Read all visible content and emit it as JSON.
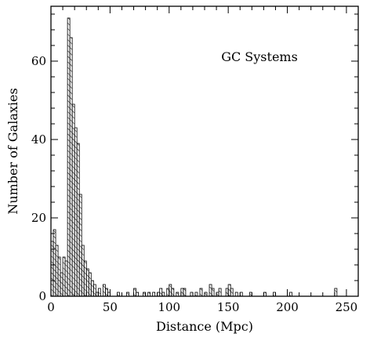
{
  "chart_data": {
    "type": "bar",
    "subtype": "histogram",
    "annotation": "GC Systems",
    "xlabel": "Distance (Mpc)",
    "ylabel": "Number of Galaxies",
    "xlim": [
      0,
      260
    ],
    "ylim": [
      0,
      74
    ],
    "xticks": [
      0,
      50,
      100,
      150,
      200,
      250
    ],
    "yticks": [
      0,
      20,
      40,
      60
    ],
    "bin_width": 2,
    "hatch": "diagonal",
    "grid": false,
    "legend": "none",
    "bins": [
      {
        "x": 0,
        "count": 14
      },
      {
        "x": 2,
        "count": 17
      },
      {
        "x": 4,
        "count": 13
      },
      {
        "x": 6,
        "count": 10
      },
      {
        "x": 8,
        "count": 6
      },
      {
        "x": 10,
        "count": 10
      },
      {
        "x": 12,
        "count": 9
      },
      {
        "x": 14,
        "count": 71
      },
      {
        "x": 16,
        "count": 66
      },
      {
        "x": 18,
        "count": 49
      },
      {
        "x": 20,
        "count": 43
      },
      {
        "x": 22,
        "count": 39
      },
      {
        "x": 24,
        "count": 26
      },
      {
        "x": 26,
        "count": 13
      },
      {
        "x": 28,
        "count": 9
      },
      {
        "x": 30,
        "count": 7
      },
      {
        "x": 32,
        "count": 6
      },
      {
        "x": 34,
        "count": 4
      },
      {
        "x": 36,
        "count": 3
      },
      {
        "x": 38,
        "count": 1
      },
      {
        "x": 40,
        "count": 2
      },
      {
        "x": 44,
        "count": 3
      },
      {
        "x": 46,
        "count": 2
      },
      {
        "x": 48,
        "count": 1
      },
      {
        "x": 56,
        "count": 1
      },
      {
        "x": 64,
        "count": 1
      },
      {
        "x": 70,
        "count": 2
      },
      {
        "x": 72,
        "count": 1
      },
      {
        "x": 78,
        "count": 1
      },
      {
        "x": 82,
        "count": 1
      },
      {
        "x": 86,
        "count": 1
      },
      {
        "x": 90,
        "count": 1
      },
      {
        "x": 92,
        "count": 2
      },
      {
        "x": 94,
        "count": 1
      },
      {
        "x": 98,
        "count": 2
      },
      {
        "x": 100,
        "count": 3
      },
      {
        "x": 102,
        "count": 2
      },
      {
        "x": 106,
        "count": 1
      },
      {
        "x": 110,
        "count": 2
      },
      {
        "x": 112,
        "count": 2
      },
      {
        "x": 118,
        "count": 1
      },
      {
        "x": 122,
        "count": 1
      },
      {
        "x": 126,
        "count": 2
      },
      {
        "x": 130,
        "count": 1
      },
      {
        "x": 134,
        "count": 3
      },
      {
        "x": 136,
        "count": 2
      },
      {
        "x": 140,
        "count": 1
      },
      {
        "x": 142,
        "count": 2
      },
      {
        "x": 148,
        "count": 2
      },
      {
        "x": 150,
        "count": 3
      },
      {
        "x": 152,
        "count": 2
      },
      {
        "x": 156,
        "count": 1
      },
      {
        "x": 160,
        "count": 1
      },
      {
        "x": 168,
        "count": 1
      },
      {
        "x": 180,
        "count": 1
      },
      {
        "x": 188,
        "count": 1
      },
      {
        "x": 202,
        "count": 1
      },
      {
        "x": 240,
        "count": 2
      }
    ]
  }
}
